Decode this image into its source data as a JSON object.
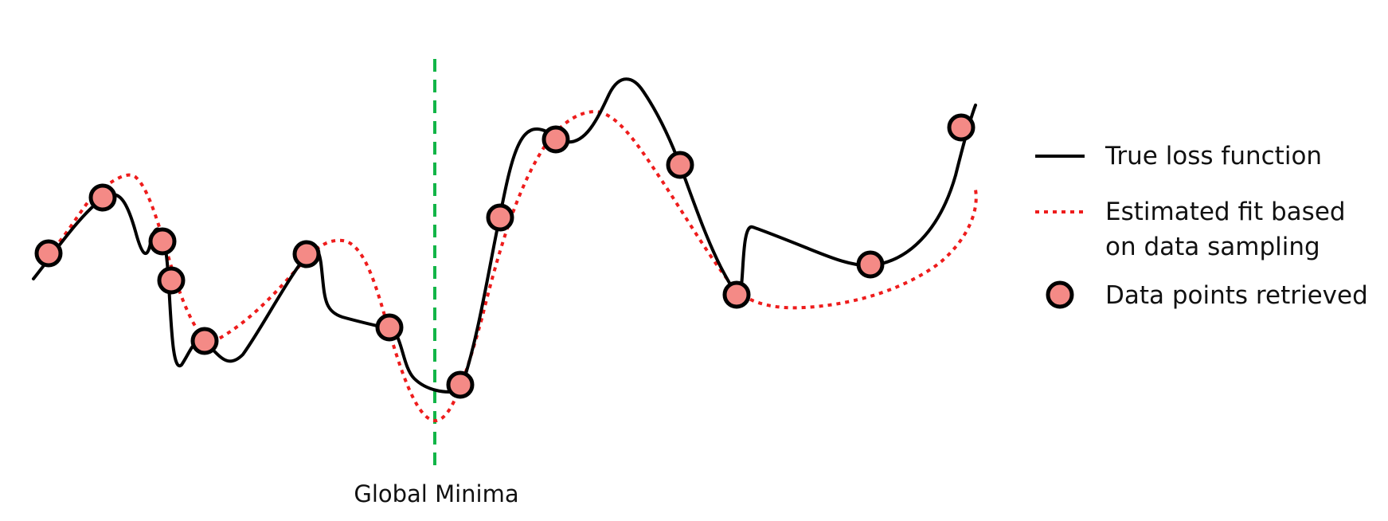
{
  "colors": {
    "true_loss": "#000000",
    "estimated_fit": "#ee1c1c",
    "data_point_fill": "#f48a86",
    "data_point_stroke": "#000000",
    "global_minima_line": "#12b548",
    "text": "#111111"
  },
  "legend": {
    "true_loss_label": "True loss function",
    "estimated_fit_line1": "Estimated fit based",
    "estimated_fit_line2": "on data sampling",
    "data_points_label": "Data points retrieved"
  },
  "annotation": {
    "global_minima_label": "Global Minima"
  },
  "icons": {
    "solid_line": "solid-line-swatch-icon",
    "dotted_line": "dotted-line-swatch-icon",
    "data_point": "data-point-marker-icon"
  }
}
